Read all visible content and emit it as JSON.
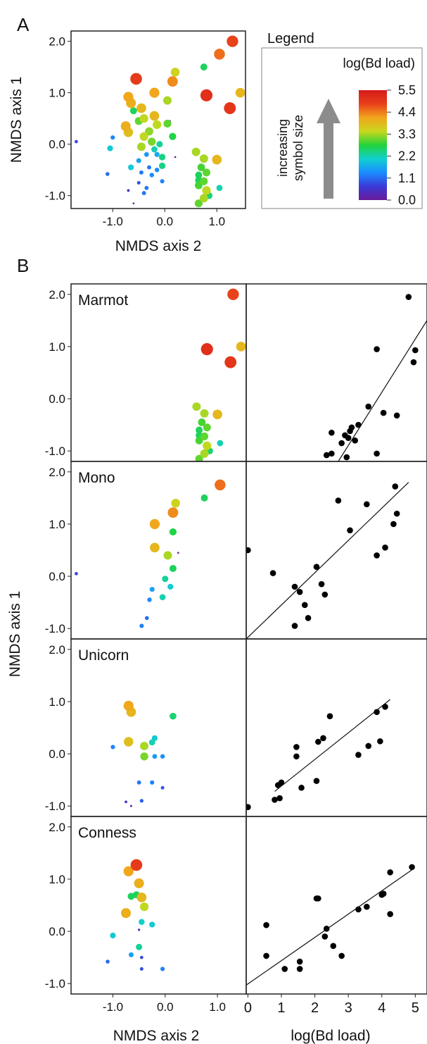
{
  "panel_labels": {
    "a": "A",
    "b": "B"
  },
  "legend": {
    "title": "Legend",
    "colorbar_title": "log(Bd load)",
    "size_label_line1": "increasing",
    "size_label_line2": "symbol size",
    "colorbar_ticks": [
      "5.5",
      "4.4",
      "3.3",
      "2.2",
      "1.1",
      "0.0"
    ],
    "color_stops": [
      "#6a1b9a",
      "#3a3ad8",
      "#1a8cff",
      "#10d0d0",
      "#22d33a",
      "#c9d81e",
      "#f2a51c",
      "#e8401a",
      "#d41a1a"
    ]
  },
  "chart_data": [
    {
      "id": "A",
      "type": "scatter",
      "title": "",
      "xlabel": "NMDS axis 2",
      "ylabel": "NMDS axis 1",
      "xlim": [
        -1.8,
        1.55
      ],
      "ylim": [
        -1.25,
        2.2
      ],
      "xticks": [
        "-1.0",
        "0.0",
        "1.0"
      ],
      "yticks": [
        "2.0",
        "1.0",
        "0.0",
        "-1.0"
      ],
      "points": [
        [
          1.3,
          2.0,
          4.8
        ],
        [
          1.05,
          1.75,
          4.5
        ],
        [
          1.45,
          1.0,
          3.9
        ],
        [
          0.8,
          0.95,
          5.1
        ],
        [
          1.25,
          0.7,
          5.0
        ],
        [
          0.2,
          1.4,
          3.5
        ],
        [
          0.75,
          1.5,
          2.6
        ],
        [
          0.15,
          1.22,
          4.3
        ],
        [
          0.05,
          0.85,
          3.3
        ],
        [
          -0.2,
          1.0,
          4.1
        ],
        [
          -0.55,
          1.27,
          4.9
        ],
        [
          -0.7,
          0.92,
          4.1
        ],
        [
          -0.65,
          0.8,
          4.0
        ],
        [
          -0.45,
          0.7,
          3.9
        ],
        [
          -0.6,
          0.65,
          2.6
        ],
        [
          -0.4,
          0.5,
          3.4
        ],
        [
          -0.5,
          0.45,
          3.0
        ],
        [
          -0.2,
          0.55,
          3.9
        ],
        [
          -0.15,
          0.38,
          3.4
        ],
        [
          -0.3,
          0.25,
          3.2
        ],
        [
          -0.75,
          0.35,
          4.0
        ],
        [
          -0.7,
          0.23,
          3.8
        ],
        [
          -0.4,
          0.15,
          3.4
        ],
        [
          -0.25,
          0.05,
          3.1
        ],
        [
          0.05,
          0.4,
          3.0
        ],
        [
          0.15,
          0.15,
          2.7
        ],
        [
          -0.1,
          0.0,
          2.3
        ],
        [
          -0.45,
          -0.05,
          3.3
        ],
        [
          -0.2,
          -0.1,
          2.2
        ],
        [
          -1.0,
          0.13,
          1.3
        ],
        [
          -0.05,
          -0.25,
          2.4
        ],
        [
          -0.15,
          -0.2,
          1.7
        ],
        [
          -0.35,
          -0.2,
          1.5
        ],
        [
          -0.5,
          -0.32,
          1.6
        ],
        [
          -0.05,
          -0.42,
          2.4
        ],
        [
          -0.15,
          -0.5,
          1.4
        ],
        [
          -0.3,
          -0.45,
          1.2
        ],
        [
          -0.45,
          -0.55,
          1.2
        ],
        [
          -0.65,
          -0.45,
          2.0
        ],
        [
          -0.25,
          -0.6,
          1.4
        ],
        [
          -0.05,
          -0.72,
          1.3
        ],
        [
          -0.5,
          -0.75,
          0.9
        ],
        [
          -0.35,
          -0.85,
          1.2
        ],
        [
          -0.4,
          -0.95,
          1.2
        ],
        [
          -1.1,
          -0.58,
          1.1
        ],
        [
          -1.05,
          -0.08,
          2.0
        ],
        [
          -0.7,
          -0.9,
          0.5
        ],
        [
          -1.7,
          0.05,
          0.8
        ],
        [
          0.1,
          0.45,
          0.1
        ],
        [
          -0.6,
          -1.15,
          0.1
        ],
        [
          0.2,
          -0.25,
          0.1
        ],
        [
          0.6,
          -0.15,
          3.3
        ],
        [
          0.75,
          -0.28,
          3.3
        ],
        [
          1.0,
          -0.3,
          3.9
        ],
        [
          0.7,
          -0.45,
          2.9
        ],
        [
          0.65,
          -0.6,
          2.6
        ],
        [
          0.8,
          -0.55,
          3.0
        ],
        [
          0.65,
          -0.7,
          2.6
        ],
        [
          0.75,
          -0.72,
          3.0
        ],
        [
          0.65,
          -0.8,
          2.9
        ],
        [
          0.8,
          -0.9,
          3.4
        ],
        [
          1.05,
          -0.85,
          2.2
        ],
        [
          0.75,
          -1.05,
          3.3
        ],
        [
          0.85,
          -1.0,
          2.5
        ],
        [
          0.65,
          -1.15,
          3.0
        ]
      ]
    },
    {
      "id": "B-Marmot-nmds",
      "type": "scatter",
      "label": "Marmot",
      "xlim": [
        -1.8,
        1.55
      ],
      "ylim": [
        -1.2,
        2.2
      ],
      "yticks": [
        "2.0",
        "1.0",
        "0.0",
        "-1.0"
      ],
      "points": [
        [
          1.3,
          2.0,
          4.8
        ],
        [
          1.45,
          1.0,
          3.9
        ],
        [
          0.8,
          0.95,
          5.1
        ],
        [
          1.25,
          0.7,
          5.0
        ],
        [
          0.6,
          -0.15,
          3.3
        ],
        [
          0.75,
          -0.28,
          3.3
        ],
        [
          1.0,
          -0.3,
          3.9
        ],
        [
          0.7,
          -0.45,
          2.9
        ],
        [
          0.65,
          -0.6,
          2.6
        ],
        [
          0.8,
          -0.55,
          3.0
        ],
        [
          0.65,
          -0.7,
          2.6
        ],
        [
          0.75,
          -0.72,
          3.0
        ],
        [
          0.65,
          -0.8,
          2.9
        ],
        [
          0.8,
          -0.9,
          3.4
        ],
        [
          1.05,
          -0.85,
          2.2
        ],
        [
          0.75,
          -1.05,
          3.3
        ],
        [
          0.85,
          -1.0,
          2.5
        ],
        [
          0.65,
          -1.15,
          3.0
        ]
      ]
    },
    {
      "id": "B-Marmot-bd",
      "type": "scatter",
      "xlim": [
        -0.05,
        5.35
      ],
      "ylim": [
        -1.2,
        2.2
      ],
      "points": [
        [
          4.8,
          1.95
        ],
        [
          5.0,
          0.93
        ],
        [
          4.95,
          0.7
        ],
        [
          3.85,
          0.95
        ],
        [
          3.6,
          -0.15
        ],
        [
          4.05,
          -0.27
        ],
        [
          4.45,
          -0.32
        ],
        [
          3.3,
          -0.5
        ],
        [
          3.1,
          -0.55
        ],
        [
          3.05,
          -0.62
        ],
        [
          3.2,
          -0.8
        ],
        [
          2.8,
          -0.85
        ],
        [
          2.9,
          -0.7
        ],
        [
          3.0,
          -0.75
        ],
        [
          2.5,
          -0.65
        ],
        [
          2.5,
          -1.05
        ],
        [
          2.35,
          -1.08
        ],
        [
          2.95,
          -1.12
        ],
        [
          3.85,
          -1.05
        ]
      ],
      "fit_line": [
        [
          2.7,
          -1.2
        ],
        [
          5.35,
          1.5
        ]
      ]
    },
    {
      "id": "B-Mono-nmds",
      "type": "scatter",
      "label": "Mono",
      "xlim": [
        -1.8,
        1.55
      ],
      "ylim": [
        -1.2,
        2.2
      ],
      "yticks": [
        "2.0",
        "1.0",
        "0.0",
        "-1.0"
      ],
      "points": [
        [
          1.05,
          1.75,
          4.5
        ],
        [
          0.75,
          1.5,
          2.6
        ],
        [
          0.2,
          1.4,
          3.5
        ],
        [
          0.15,
          1.22,
          4.3
        ],
        [
          0.15,
          0.85,
          2.7
        ],
        [
          -0.2,
          1.0,
          4.1
        ],
        [
          -0.2,
          0.55,
          3.9
        ],
        [
          0.05,
          0.4,
          3.3
        ],
        [
          0.15,
          0.15,
          2.6
        ],
        [
          0.0,
          -0.05,
          2.3
        ],
        [
          0.1,
          -0.2,
          2.0
        ],
        [
          -0.05,
          -0.4,
          2.2
        ],
        [
          -0.25,
          -0.25,
          1.6
        ],
        [
          -0.3,
          -0.45,
          1.4
        ],
        [
          -0.35,
          -0.8,
          1.1
        ],
        [
          -0.45,
          -0.95,
          1.3
        ],
        [
          0.25,
          0.45,
          0.1
        ],
        [
          -1.7,
          0.05,
          0.8
        ]
      ]
    },
    {
      "id": "B-Mono-bd",
      "type": "scatter",
      "xlim": [
        -0.05,
        5.35
      ],
      "ylim": [
        -1.2,
        2.2
      ],
      "points": [
        [
          0.0,
          0.5
        ],
        [
          0.75,
          0.06
        ],
        [
          1.4,
          -0.2
        ],
        [
          1.55,
          -0.3
        ],
        [
          1.7,
          -0.55
        ],
        [
          1.8,
          -0.8
        ],
        [
          1.4,
          -0.95
        ],
        [
          2.05,
          0.18
        ],
        [
          2.2,
          -0.15
        ],
        [
          2.3,
          -0.35
        ],
        [
          2.7,
          1.45
        ],
        [
          3.05,
          0.88
        ],
        [
          3.55,
          1.38
        ],
        [
          3.85,
          0.4
        ],
        [
          4.1,
          0.55
        ],
        [
          4.35,
          1.0
        ],
        [
          4.45,
          1.2
        ],
        [
          4.4,
          1.72
        ]
      ],
      "fit_line": [
        [
          -0.05,
          -1.2
        ],
        [
          4.8,
          1.8
        ]
      ]
    },
    {
      "id": "B-Unicorn-nmds",
      "type": "scatter",
      "label": "Unicorn",
      "xlim": [
        -1.8,
        1.55
      ],
      "ylim": [
        -1.2,
        2.2
      ],
      "yticks": [
        "2.0",
        "1.0",
        "0.0",
        "-1.0"
      ],
      "points": [
        [
          -0.7,
          0.92,
          4.1
        ],
        [
          -0.65,
          0.8,
          3.9
        ],
        [
          0.15,
          0.72,
          2.5
        ],
        [
          -0.7,
          0.23,
          3.8
        ],
        [
          -0.4,
          0.15,
          3.3
        ],
        [
          -0.25,
          0.22,
          2.2
        ],
        [
          -0.2,
          0.3,
          2.0
        ],
        [
          -0.4,
          -0.05,
          3.1
        ],
        [
          -0.2,
          -0.05,
          1.5
        ],
        [
          -0.05,
          -0.05,
          1.4
        ],
        [
          -1.0,
          0.13,
          1.3
        ],
        [
          -0.5,
          -0.55,
          1.2
        ],
        [
          -0.25,
          -0.55,
          1.3
        ],
        [
          -0.05,
          -0.65,
          0.9
        ],
        [
          -0.45,
          -0.9,
          1.0
        ],
        [
          -0.75,
          -0.92,
          0.5
        ],
        [
          -0.65,
          -1.0,
          0.2
        ]
      ]
    },
    {
      "id": "B-Unicorn-bd",
      "type": "scatter",
      "xlim": [
        -0.05,
        5.35
      ],
      "ylim": [
        -1.2,
        2.2
      ],
      "points": [
        [
          0.0,
          -1.02
        ],
        [
          0.9,
          -0.6
        ],
        [
          1.0,
          -0.55
        ],
        [
          0.8,
          -0.88
        ],
        [
          0.95,
          -0.85
        ],
        [
          1.45,
          -0.05
        ],
        [
          1.45,
          0.13
        ],
        [
          1.6,
          -0.65
        ],
        [
          2.05,
          -0.52
        ],
        [
          2.1,
          0.23
        ],
        [
          2.25,
          0.3
        ],
        [
          2.45,
          0.72
        ],
        [
          3.3,
          -0.02
        ],
        [
          3.6,
          0.15
        ],
        [
          3.95,
          0.24
        ],
        [
          3.85,
          0.8
        ],
        [
          4.1,
          0.9
        ]
      ],
      "fit_line": [
        [
          0.8,
          -0.72
        ],
        [
          4.25,
          1.04
        ]
      ]
    },
    {
      "id": "B-Conness-nmds",
      "type": "scatter",
      "label": "Conness",
      "xlim": [
        -1.8,
        1.55
      ],
      "ylim": [
        -1.2,
        2.2
      ],
      "yticks": [
        "2.0",
        "1.0",
        "0.0",
        "-1.0"
      ],
      "points": [
        [
          -0.55,
          1.27,
          4.9
        ],
        [
          -0.7,
          1.15,
          4.1
        ],
        [
          -0.5,
          0.92,
          4.0
        ],
        [
          -0.55,
          0.7,
          2.6
        ],
        [
          -0.45,
          0.65,
          3.9
        ],
        [
          -0.65,
          0.67,
          2.6
        ],
        [
          -0.4,
          0.47,
          3.4
        ],
        [
          -0.75,
          0.35,
          4.0
        ],
        [
          -0.45,
          0.18,
          2.1
        ],
        [
          -0.25,
          0.13,
          2.0
        ],
        [
          -1.0,
          -0.08,
          2.0
        ],
        [
          -0.5,
          -0.3,
          2.3
        ],
        [
          -0.65,
          -0.45,
          1.6
        ],
        [
          -0.45,
          -0.5,
          0.8
        ],
        [
          -1.1,
          -0.58,
          1.1
        ],
        [
          -0.05,
          -0.72,
          1.3
        ],
        [
          -0.45,
          -0.72,
          0.9
        ],
        [
          -0.5,
          0.03,
          0.3
        ]
      ]
    },
    {
      "id": "B-Conness-bd",
      "type": "scatter",
      "xlim": [
        -0.05,
        5.35
      ],
      "ylim": [
        -1.2,
        2.2
      ],
      "points": [
        [
          0.55,
          0.12
        ],
        [
          0.55,
          -0.47
        ],
        [
          1.1,
          -0.72
        ],
        [
          1.55,
          -0.58
        ],
        [
          1.55,
          -0.72
        ],
        [
          2.05,
          0.63
        ],
        [
          2.1,
          0.63
        ],
        [
          2.3,
          -0.1
        ],
        [
          2.35,
          0.05
        ],
        [
          2.55,
          -0.28
        ],
        [
          2.8,
          -0.47
        ],
        [
          3.3,
          0.42
        ],
        [
          3.55,
          0.47
        ],
        [
          4.0,
          0.7
        ],
        [
          4.05,
          0.72
        ],
        [
          4.25,
          0.33
        ],
        [
          4.25,
          1.13
        ],
        [
          4.9,
          1.23
        ]
      ],
      "fit_line": [
        [
          -0.05,
          -1.03
        ],
        [
          4.95,
          1.2
        ]
      ]
    }
  ],
  "axes_b": {
    "ylabel": "NMDS axis 1",
    "xlabel_left": "NMDS axis 2",
    "xlabel_right": "log(Bd load)",
    "xticks_left": [
      "-1.0",
      "0.0",
      "1.0"
    ],
    "xticks_right": [
      "0",
      "1",
      "2",
      "3",
      "4",
      "5"
    ]
  }
}
